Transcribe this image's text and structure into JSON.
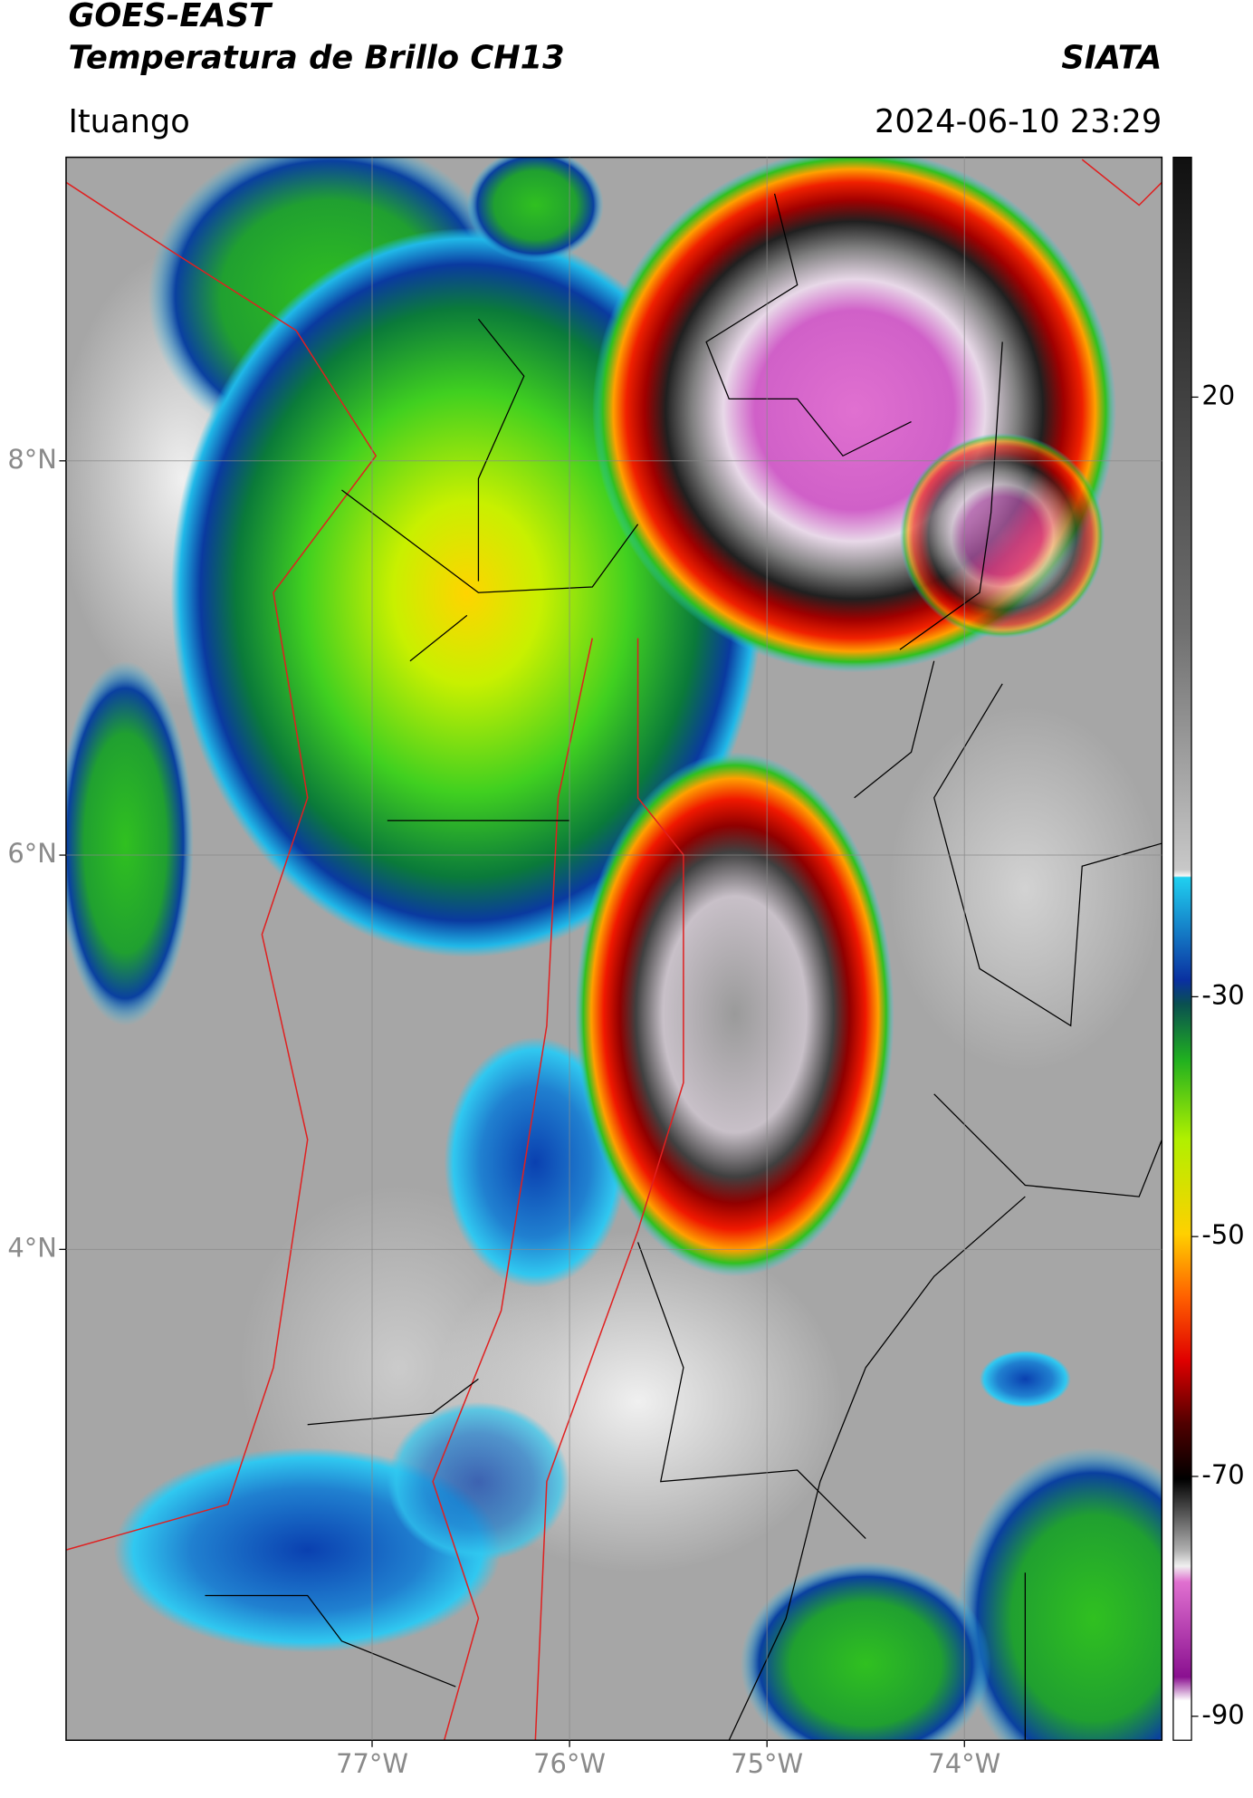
{
  "header": {
    "title": "GOES-EAST",
    "subtitle": "Temperatura de Brillo CH13",
    "source": "SIATA",
    "region": "Ituango",
    "datetime": "2024-06-10 23:29"
  },
  "map": {
    "xlim": [
      -78.55,
      -73.0
    ],
    "ylim": [
      1.51,
      9.54
    ],
    "xticks": [
      {
        "value": -77,
        "label": "77°W"
      },
      {
        "value": -76,
        "label": "76°W"
      },
      {
        "value": -75,
        "label": "75°W"
      },
      {
        "value": -74,
        "label": "74°W"
      }
    ],
    "yticks": [
      {
        "value": 8,
        "label": "8°N"
      },
      {
        "value": 6,
        "label": "6°N"
      },
      {
        "value": 4,
        "label": "4°N"
      }
    ],
    "grid": true
  },
  "colorbar": {
    "lim": [
      -92,
      40
    ],
    "ticks": [
      20,
      -30,
      -50,
      -70,
      -90
    ]
  }
}
